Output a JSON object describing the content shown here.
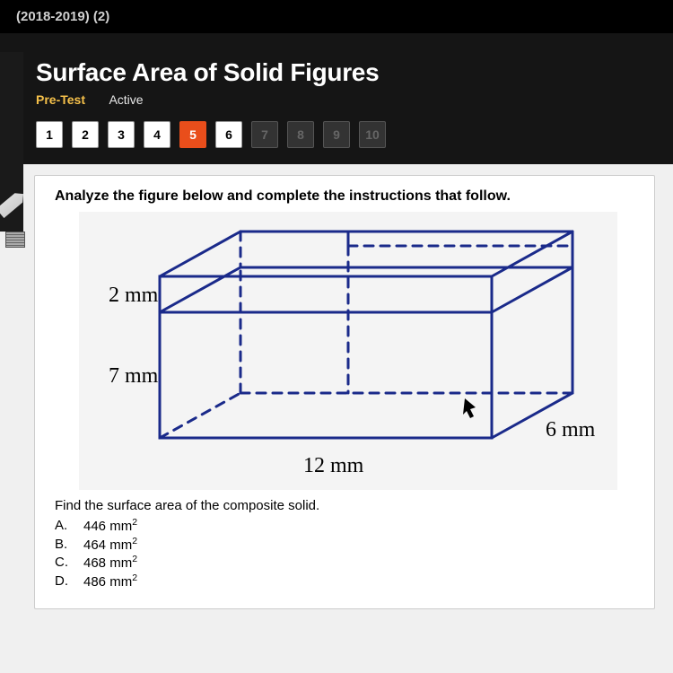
{
  "header": {
    "breadcrumb": "(2018-2019) (2)"
  },
  "lesson": {
    "title": "Surface Area of Solid Figures",
    "pretest_label": "Pre-Test",
    "active_label": "Active"
  },
  "nav": {
    "buttons": [
      {
        "label": "1",
        "state": "enabled"
      },
      {
        "label": "2",
        "state": "enabled"
      },
      {
        "label": "3",
        "state": "enabled"
      },
      {
        "label": "4",
        "state": "enabled"
      },
      {
        "label": "5",
        "state": "current"
      },
      {
        "label": "6",
        "state": "enabled"
      },
      {
        "label": "7",
        "state": "disabled"
      },
      {
        "label": "8",
        "state": "disabled"
      },
      {
        "label": "9",
        "state": "disabled"
      },
      {
        "label": "10",
        "state": "disabled"
      }
    ],
    "colors": {
      "current_bg": "#e94e1b",
      "enabled_bg": "#ffffff",
      "disabled_bg": "#333333"
    }
  },
  "question": {
    "instruction": "Analyze the figure below and complete the instructions that follow.",
    "prompt": "Find the surface area of the composite solid.",
    "options": [
      {
        "letter": "A.",
        "value": "446 mm",
        "sup": "2"
      },
      {
        "letter": "B.",
        "value": "464 mm",
        "sup": "2"
      },
      {
        "letter": "C.",
        "value": "468 mm",
        "sup": "2"
      },
      {
        "letter": "D.",
        "value": "486 mm",
        "sup": "2"
      }
    ]
  },
  "figure": {
    "dim_top": "2 mm",
    "dim_height": "7 mm",
    "dim_width": "12 mm",
    "dim_depth": "6 mm",
    "stroke_color": "#1a2a8a",
    "stroke_width": 3,
    "dash": "10,8",
    "bg": "#f4f4f4"
  }
}
